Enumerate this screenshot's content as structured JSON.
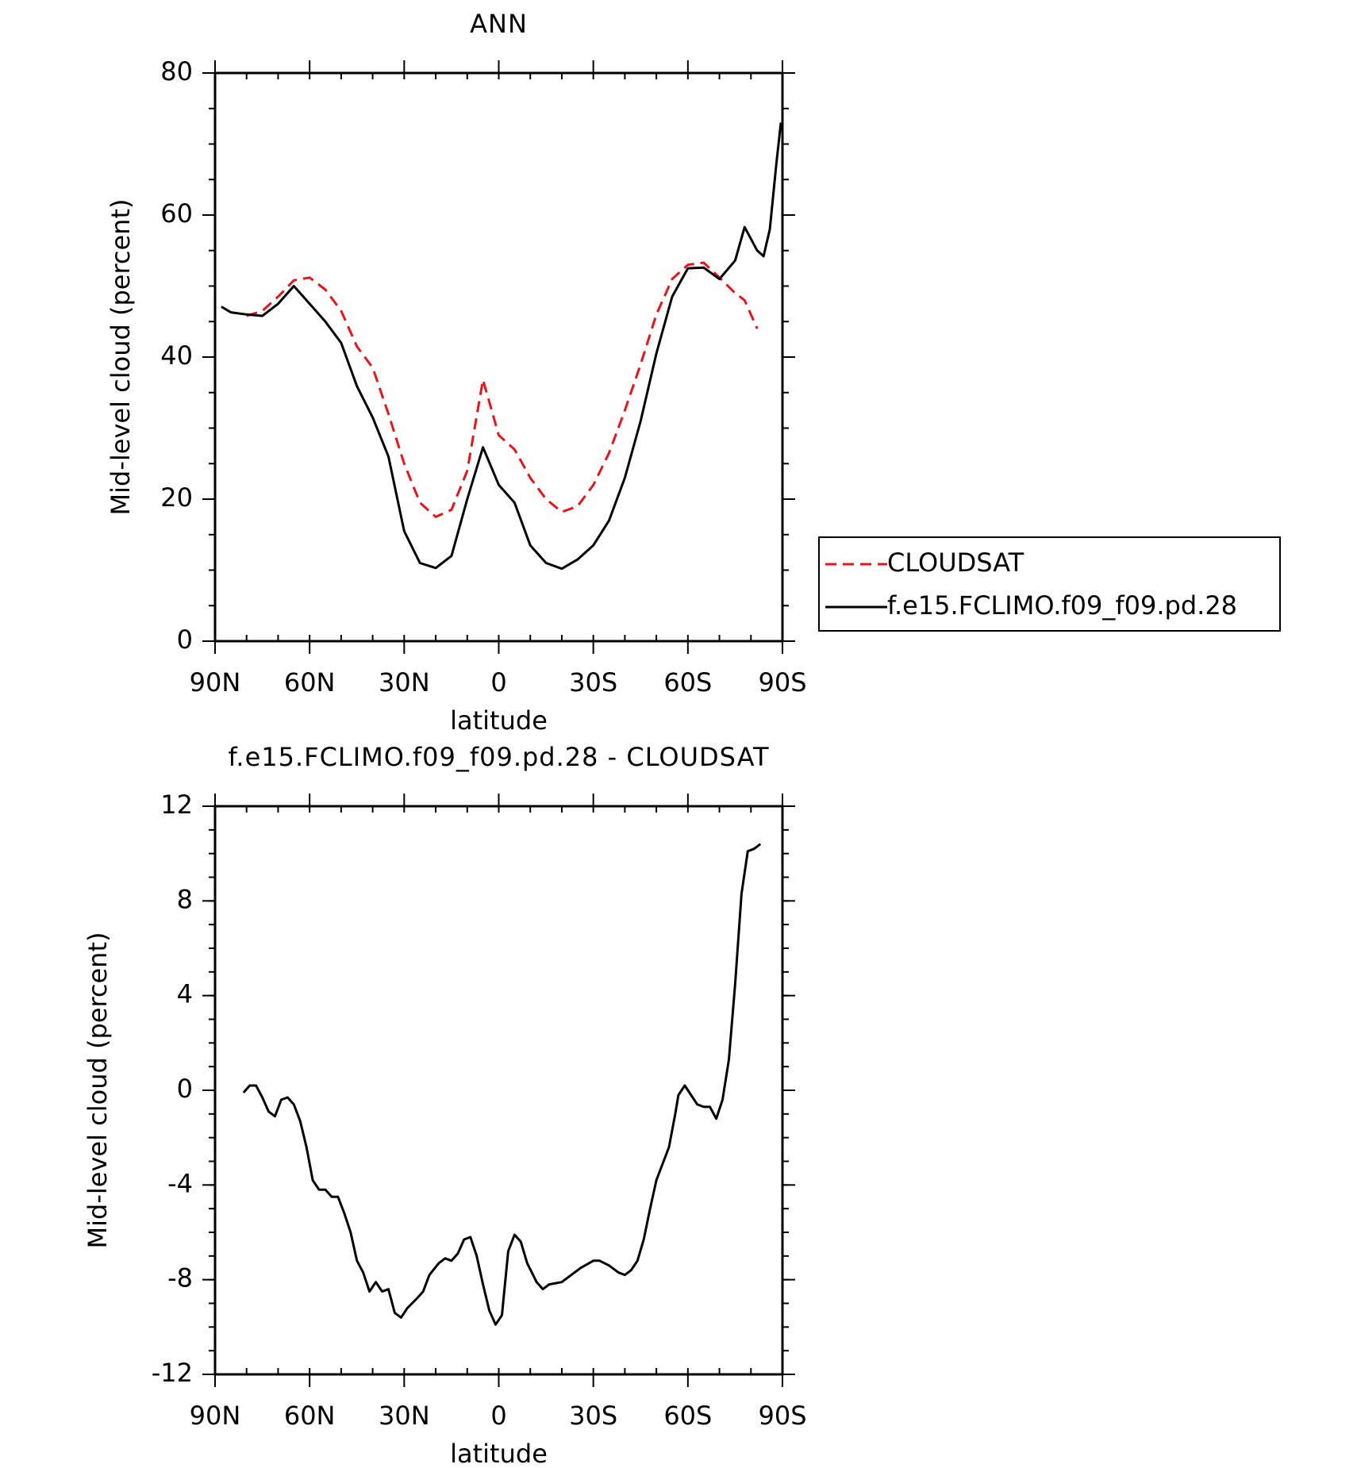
{
  "chart_data": [
    {
      "type": "line",
      "title": "ANN",
      "xlabel": "latitude",
      "ylabel": "Mid-level cloud (percent)",
      "x": [
        88,
        85,
        80,
        75,
        70,
        65,
        60,
        55,
        50,
        45,
        40,
        35,
        30,
        25,
        20,
        15,
        10,
        5,
        0,
        -5,
        -10,
        -15,
        -20,
        -25,
        -30,
        -35,
        -40,
        -45,
        -50,
        -55,
        -60,
        -65,
        -70,
        -75,
        -78,
        -82,
        -84,
        -86,
        -88,
        -89.5
      ],
      "series": [
        {
          "name": "CLOUDSAT",
          "color": "#e8141b",
          "style": "dashed",
          "values": [
            null,
            null,
            45.8,
            46.5,
            48.5,
            50.8,
            51.2,
            49.5,
            46.5,
            41.5,
            38.5,
            32,
            25,
            19.5,
            17.5,
            18.5,
            24,
            36.8,
            29,
            27,
            23,
            20,
            18.2,
            19,
            22,
            26.5,
            32.5,
            39,
            46,
            51,
            53,
            53.3,
            51.2,
            49,
            48,
            44,
            null,
            null,
            null,
            null
          ]
        },
        {
          "name": "f.e15.FCLIMO.f09_f09.pd.28",
          "color": "#000000",
          "style": "solid",
          "values": [
            47.1,
            46.3,
            46,
            45.8,
            47.5,
            50,
            47.5,
            45,
            42,
            35.9,
            31.5,
            26,
            15.5,
            11,
            10.3,
            12,
            20,
            27.3,
            22,
            19.5,
            13.5,
            11,
            10.2,
            11.5,
            13.5,
            17,
            23,
            31,
            40.5,
            48.5,
            52.5,
            52.6,
            51,
            53.6,
            58.3,
            55,
            54.2,
            58,
            67,
            73
          ]
        }
      ],
      "xlim": [
        90,
        -90
      ],
      "xticks": [
        {
          "value": 90,
          "label": "90N"
        },
        {
          "value": 60,
          "label": "60N"
        },
        {
          "value": 30,
          "label": "30N"
        },
        0,
        {
          "value": -30,
          "label": "30S"
        },
        {
          "value": -60,
          "label": "60S"
        },
        {
          "value": -90,
          "label": "90S"
        }
      ],
      "ylim": [
        0,
        80
      ],
      "yticks": [
        0,
        20,
        40,
        60,
        80
      ],
      "legend": "right"
    },
    {
      "type": "line",
      "title": "f.e15.FCLIMO.f09_f09.pd.28 - CLOUDSAT",
      "xlabel": "latitude",
      "ylabel": "Mid-level cloud (percent)",
      "x": [
        81,
        79,
        77,
        75,
        73,
        71,
        69,
        67,
        65,
        63,
        61,
        59,
        57,
        55,
        53,
        51,
        49,
        47,
        45,
        43,
        41,
        39,
        37,
        35,
        33,
        31,
        29,
        26,
        24,
        22,
        19,
        17,
        15,
        13,
        11,
        9,
        7,
        5,
        3,
        1,
        -1,
        -3,
        -5,
        -7,
        -9,
        -12,
        -14,
        -16,
        -20,
        -23,
        -26,
        -30,
        -32,
        -35,
        -38,
        -40,
        -42,
        -44,
        -46,
        -48,
        -50,
        -54,
        -56,
        -57,
        -59,
        -61,
        -63,
        -65,
        -67,
        -69,
        -71,
        -73,
        -75,
        -77,
        -79,
        -81,
        -83
      ],
      "values": [
        -0.1,
        0.2,
        0.2,
        -0.3,
        -0.9,
        -1.1,
        -0.4,
        -0.3,
        -0.6,
        -1.3,
        -2.4,
        -3.8,
        -4.2,
        -4.2,
        -4.5,
        -4.5,
        -5.2,
        -6,
        -7.2,
        -7.7,
        -8.5,
        -8.1,
        -8.5,
        -8.4,
        -9.4,
        -9.6,
        -9.2,
        -8.8,
        -8.5,
        -7.8,
        -7.3,
        -7.1,
        -7.2,
        -6.9,
        -6.3,
        -6.2,
        -7,
        -8.2,
        -9.3,
        -9.9,
        -9.5,
        -6.8,
        -6.1,
        -6.4,
        -7.3,
        -8.1,
        -8.4,
        -8.2,
        -8.1,
        -7.8,
        -7.5,
        -7.2,
        -7.2,
        -7.4,
        -7.7,
        -7.8,
        -7.6,
        -7.2,
        -6.3,
        -5,
        -3.8,
        -2.4,
        -1,
        -0.2,
        0.2,
        -0.2,
        -0.6,
        -0.7,
        -0.7,
        -1.2,
        -0.4,
        1.3,
        4.5,
        8.3,
        10.1,
        10.2,
        10.4
      ],
      "color": "#000000",
      "xlim": [
        90,
        -90
      ],
      "xticks": [
        {
          "value": 90,
          "label": "90N"
        },
        {
          "value": 60,
          "label": "60N"
        },
        {
          "value": 30,
          "label": "30N"
        },
        0,
        {
          "value": -30,
          "label": "30S"
        },
        {
          "value": -60,
          "label": "60S"
        },
        {
          "value": -90,
          "label": "90S"
        }
      ],
      "ylim": [
        -12,
        12
      ],
      "yticks": [
        -12,
        -8,
        -4,
        0,
        4,
        8,
        12
      ]
    }
  ]
}
